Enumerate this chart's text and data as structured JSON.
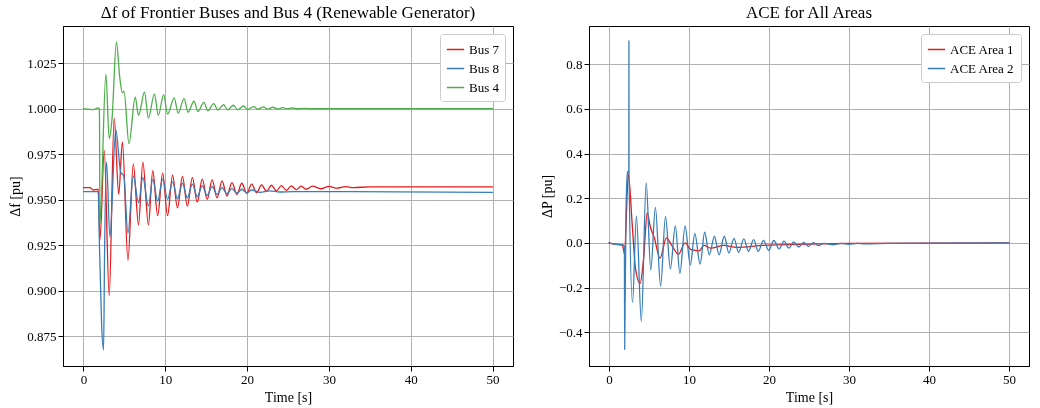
{
  "chart_data": [
    {
      "type": "line",
      "title": "Δf of Frontier Buses and Bus 4 (Renewable Generator)",
      "xlabel": "Time [s]",
      "ylabel": "Δf [pu]",
      "xlim": [
        -2.5,
        52.5
      ],
      "ylim": [
        0.8585,
        1.0455
      ],
      "xticks": [
        0,
        10,
        20,
        30,
        40,
        50
      ],
      "yticks": [
        {
          "value": 0.875,
          "label": "0.875"
        },
        {
          "value": 0.9,
          "label": "0.900"
        },
        {
          "value": 0.925,
          "label": "0.925"
        },
        {
          "value": 0.95,
          "label": "0.950"
        },
        {
          "value": 0.975,
          "label": "0.975"
        },
        {
          "value": 1.0,
          "label": "1.000"
        },
        {
          "value": 1.025,
          "label": "1.025"
        }
      ],
      "grid": true,
      "legend": "top right",
      "marker": "none",
      "line_style": "solid",
      "series": [
        {
          "name": "Bus 7",
          "color": "#e41a1c",
          "x": [
            0,
            0.8,
            1.2,
            1.81,
            2.02,
            2.54,
            3.15,
            3.75,
            4.31,
            4.76,
            5.44,
            6.09,
            6.73,
            7.26,
            7.94,
            8.47,
            9.07,
            9.68,
            10.28,
            10.89,
            11.49,
            12.1,
            12.7,
            13.31,
            13.91,
            14.52,
            15.12,
            15.73,
            16.33,
            16.94,
            17.54,
            18.15,
            18.75,
            19.35,
            19.96,
            20.56,
            21.17,
            21.77,
            22.38,
            22.98,
            23.59,
            24.19,
            24.8,
            25.4,
            26.01,
            26.61,
            27.22,
            28,
            29,
            30,
            31,
            32,
            33,
            35,
            50
          ],
          "values": [
            0.9566,
            0.9566,
            0.9553,
            0.9557,
            0.928,
            0.9771,
            0.8971,
            0.9948,
            0.953,
            0.9818,
            0.9166,
            0.9697,
            0.9361,
            0.9706,
            0.9361,
            0.9659,
            0.9412,
            0.9646,
            0.9412,
            0.9635,
            0.9455,
            0.9628,
            0.9464,
            0.9622,
            0.9486,
            0.9613,
            0.9501,
            0.9609,
            0.951,
            0.9603,
            0.952,
            0.9594,
            0.9529,
            0.959,
            0.9535,
            0.9585,
            0.9538,
            0.9581,
            0.9546,
            0.9579,
            0.9548,
            0.9577,
            0.9551,
            0.9576,
            0.9555,
            0.9574,
            0.9557,
            0.9574,
            0.956,
            0.9573,
            0.9563,
            0.9572,
            0.9566,
            0.957,
            0.957
          ]
        },
        {
          "name": "Bus 8",
          "color": "#377eb8",
          "x": [
            0,
            1.81,
            1.94,
            2.22,
            2.46,
            2.58,
            2.82,
            3.23,
            3.95,
            4.56,
            4.92,
            5.44,
            6.09,
            6.73,
            7.26,
            7.94,
            8.47,
            9.07,
            9.68,
            10.28,
            10.89,
            11.49,
            12.1,
            12.7,
            13.31,
            13.91,
            14.52,
            15.12,
            15.73,
            16.33,
            16.94,
            17.54,
            18.15,
            18.75,
            19.35,
            19.96,
            20.56,
            21.57,
            22.78,
            24,
            25.6,
            50
          ],
          "values": [
            0.9544,
            0.9544,
            0.928,
            0.8812,
            0.8673,
            0.92,
            0.9706,
            0.9296,
            0.9883,
            0.965,
            0.9631,
            0.9315,
            0.9631,
            0.9483,
            0.9622,
            0.9464,
            0.9613,
            0.9492,
            0.9613,
            0.9501,
            0.9598,
            0.9505,
            0.959,
            0.951,
            0.9585,
            0.9516,
            0.9576,
            0.9523,
            0.9572,
            0.9529,
            0.9566,
            0.9533,
            0.9561,
            0.9535,
            0.9557,
            0.9536,
            0.9553,
            0.954,
            0.9548,
            0.9542,
            0.9544,
            0.954
          ]
        },
        {
          "name": "Bus 4",
          "color": "#4daf4a",
          "x": [
            0,
            1.2,
            1.81,
            1.95,
            2.02,
            2.74,
            3.15,
            3.5,
            4.03,
            4.44,
            4.76,
            4.96,
            5.56,
            6.33,
            6.73,
            7.46,
            7.94,
            8.67,
            9.15,
            9.8,
            10.28,
            11.09,
            11.57,
            12.3,
            12.78,
            13.51,
            13.99,
            14.72,
            15.2,
            15.93,
            16.41,
            17.14,
            17.62,
            18.35,
            18.83,
            19.56,
            20.04,
            20.8,
            21.3,
            22,
            22.5,
            23.2,
            23.7,
            24.4,
            24.9,
            25.6,
            26.1,
            27,
            28,
            50
          ],
          "values": [
            1.0,
            0.9995,
            1.0005,
            1.0,
            0.937,
            1.019,
            0.9836,
            0.995,
            1.0367,
            1.0171,
            1.0087,
            1.0097,
            0.9808,
            1.0063,
            0.9963,
            1.0091,
            0.9948,
            1.0082,
            0.9963,
            1.0078,
            0.997,
            1.006,
            0.9976,
            1.0056,
            0.9981,
            1.0041,
            0.9985,
            1.0035,
            0.9989,
            1.0028,
            0.9993,
            1.0022,
            0.9994,
            1.0019,
            0.9994,
            1.0015,
            0.9996,
            1.0012,
            0.9997,
            1.001,
            0.9998,
            1.0008,
            0.9999,
            1.0006,
            0.9999,
            1.0004,
            1.0,
            1.0002,
            1.0,
            1.0
          ]
        }
      ]
    },
    {
      "type": "line",
      "title": "ACE for All Areas",
      "xlabel": "Time [s]",
      "ylabel": "ΔP [pu]",
      "xlim": [
        -2.5,
        52.5
      ],
      "ylim": [
        -0.55,
        0.97
      ],
      "xticks": [
        0,
        10,
        20,
        30,
        40,
        50
      ],
      "yticks": [
        {
          "value": -0.4,
          "label": "−0.4"
        },
        {
          "value": -0.2,
          "label": "−0.2"
        },
        {
          "value": 0,
          "label": "0.0"
        },
        0.2,
        0.4,
        0.6,
        0.8
      ],
      "grid": true,
      "legend": "top right",
      "marker": "none",
      "line_style": "solid",
      "series": [
        {
          "name": "ACE Area 1",
          "color": "#e41a1c",
          "x": [
            0,
            0.65,
            1.67,
            1.96,
            2.12,
            2.41,
            2.9,
            3.31,
            3.88,
            4.33,
            4.78,
            5.14,
            5.67,
            6.37,
            7.18,
            7.8,
            8.69,
            9.51,
            10.24,
            11.27,
            11.88,
            12.69,
            14.33,
            15.96,
            19.2,
            25,
            30,
            50
          ],
          "values": [
            0,
            -0.005,
            -0.01,
            -0.05,
            0.07,
            0.31,
            0.083,
            -0.113,
            -0.181,
            -0.068,
            0.136,
            0.076,
            0.023,
            -0.068,
            0.023,
            -0.008,
            -0.05,
            0,
            -0.03,
            -0.035,
            -0.011,
            -0.023,
            -0.011,
            -0.02,
            -0.011,
            -0.005,
            -0.002,
            0
          ]
        },
        {
          "name": "ACE Area 2",
          "color": "#377eb8",
          "x": [
            0,
            0.65,
            1.67,
            1.92,
            1.96,
            2.12,
            2.33,
            2.48,
            2.49,
            2.5,
            2.94,
            3.43,
            4.04,
            4.65,
            5.22,
            5.8,
            6.45,
            7.06,
            7.67,
            8.29,
            8.86,
            9.51,
            10.16,
            10.73,
            11.39,
            11.96,
            12.53,
            13.18,
            13.76,
            14.41,
            14.98,
            15.63,
            16.2,
            16.86,
            17.43,
            18.08,
            18.65,
            19.31,
            19.96,
            20.61,
            21.27,
            21.88,
            22.49,
            23.1,
            23.71,
            24.33,
            24.94,
            25.55,
            26.16,
            26.9,
            28,
            29,
            30,
            31,
            32,
            35,
            50
          ],
          "values": [
            0,
            -0.005,
            -0.008,
            -0.015,
            -0.476,
            0.144,
            0.317,
            0.325,
            0.904,
            0.32,
            -0.265,
            0.121,
            -0.351,
            0.269,
            -0.121,
            0.159,
            -0.193,
            0.119,
            -0.116,
            0.076,
            -0.136,
            0.076,
            -0.098,
            0.042,
            -0.095,
            0.048,
            -0.053,
            0.029,
            -0.053,
            0.03,
            -0.045,
            0.021,
            -0.042,
            0.018,
            -0.038,
            0.015,
            -0.038,
            0.012,
            -0.033,
            0.011,
            -0.026,
            0.008,
            -0.023,
            0.005,
            -0.018,
            0.003,
            -0.015,
            0.002,
            -0.012,
            -0.002,
            -0.008,
            -0.002,
            -0.006,
            -0.002,
            -0.004,
            -0.002,
            0
          ]
        }
      ]
    }
  ]
}
